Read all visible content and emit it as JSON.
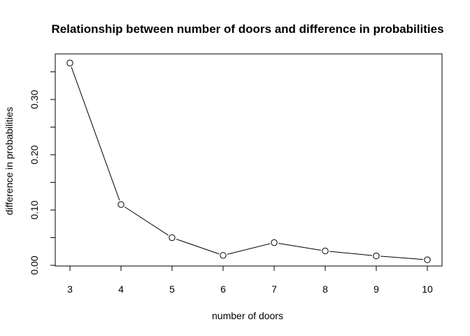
{
  "chart_data": {
    "type": "line",
    "title": "Relationship between number of doors and difference in probabilities",
    "xlabel": "number of doors",
    "ylabel": "difference in probabilities",
    "x": [
      3,
      4,
      5,
      6,
      7,
      8,
      9,
      10
    ],
    "values": [
      0.366,
      0.11,
      0.05,
      0.018,
      0.041,
      0.026,
      0.017,
      0.01
    ],
    "xlim": [
      3,
      10
    ],
    "ylim": [
      0.0,
      0.366
    ],
    "x_ticks": [
      "3",
      "4",
      "5",
      "6",
      "7",
      "8",
      "9",
      "10"
    ],
    "y_ticks": [
      "0.00",
      "0.10",
      "0.20",
      "0.30"
    ],
    "y_tick_values": [
      0.0,
      0.1,
      0.2,
      0.3
    ],
    "y_minor_tick_values": [
      0.05,
      0.15,
      0.25,
      0.35
    ],
    "grid": false,
    "legend": "none",
    "marker": "open-circle",
    "line_color": "#000000"
  }
}
